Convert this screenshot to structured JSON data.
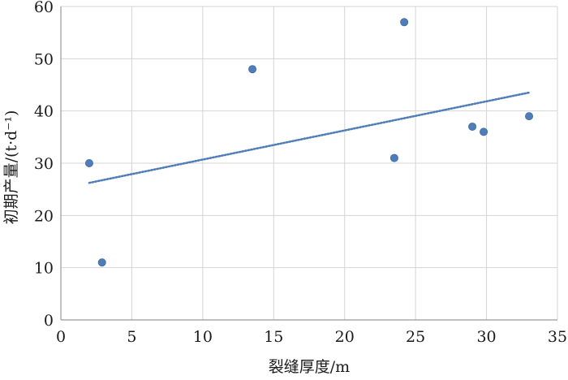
{
  "chart_data": {
    "type": "scatter",
    "title": "",
    "xlabel": "裂缝厚度/m",
    "ylabel": "初期产量/(t·d⁻¹)",
    "xlim": [
      0,
      35
    ],
    "ylim": [
      0,
      60
    ],
    "x_ticks": [
      0,
      5,
      10,
      15,
      20,
      25,
      30,
      35
    ],
    "y_ticks": [
      0,
      10,
      20,
      30,
      40,
      50,
      60
    ],
    "grid": true,
    "marker_color": "#4f7db8",
    "trendline_color": "#4f7db8",
    "series": [
      {
        "points": [
          {
            "x": 2.0,
            "y": 30
          },
          {
            "x": 2.9,
            "y": 11
          },
          {
            "x": 13.5,
            "y": 48
          },
          {
            "x": 23.5,
            "y": 31
          },
          {
            "x": 24.2,
            "y": 57
          },
          {
            "x": 29.0,
            "y": 37
          },
          {
            "x": 29.8,
            "y": 36
          },
          {
            "x": 33.0,
            "y": 39
          }
        ]
      }
    ],
    "trendline": {
      "type": "linear",
      "x_range": [
        2.0,
        33.0
      ]
    }
  }
}
